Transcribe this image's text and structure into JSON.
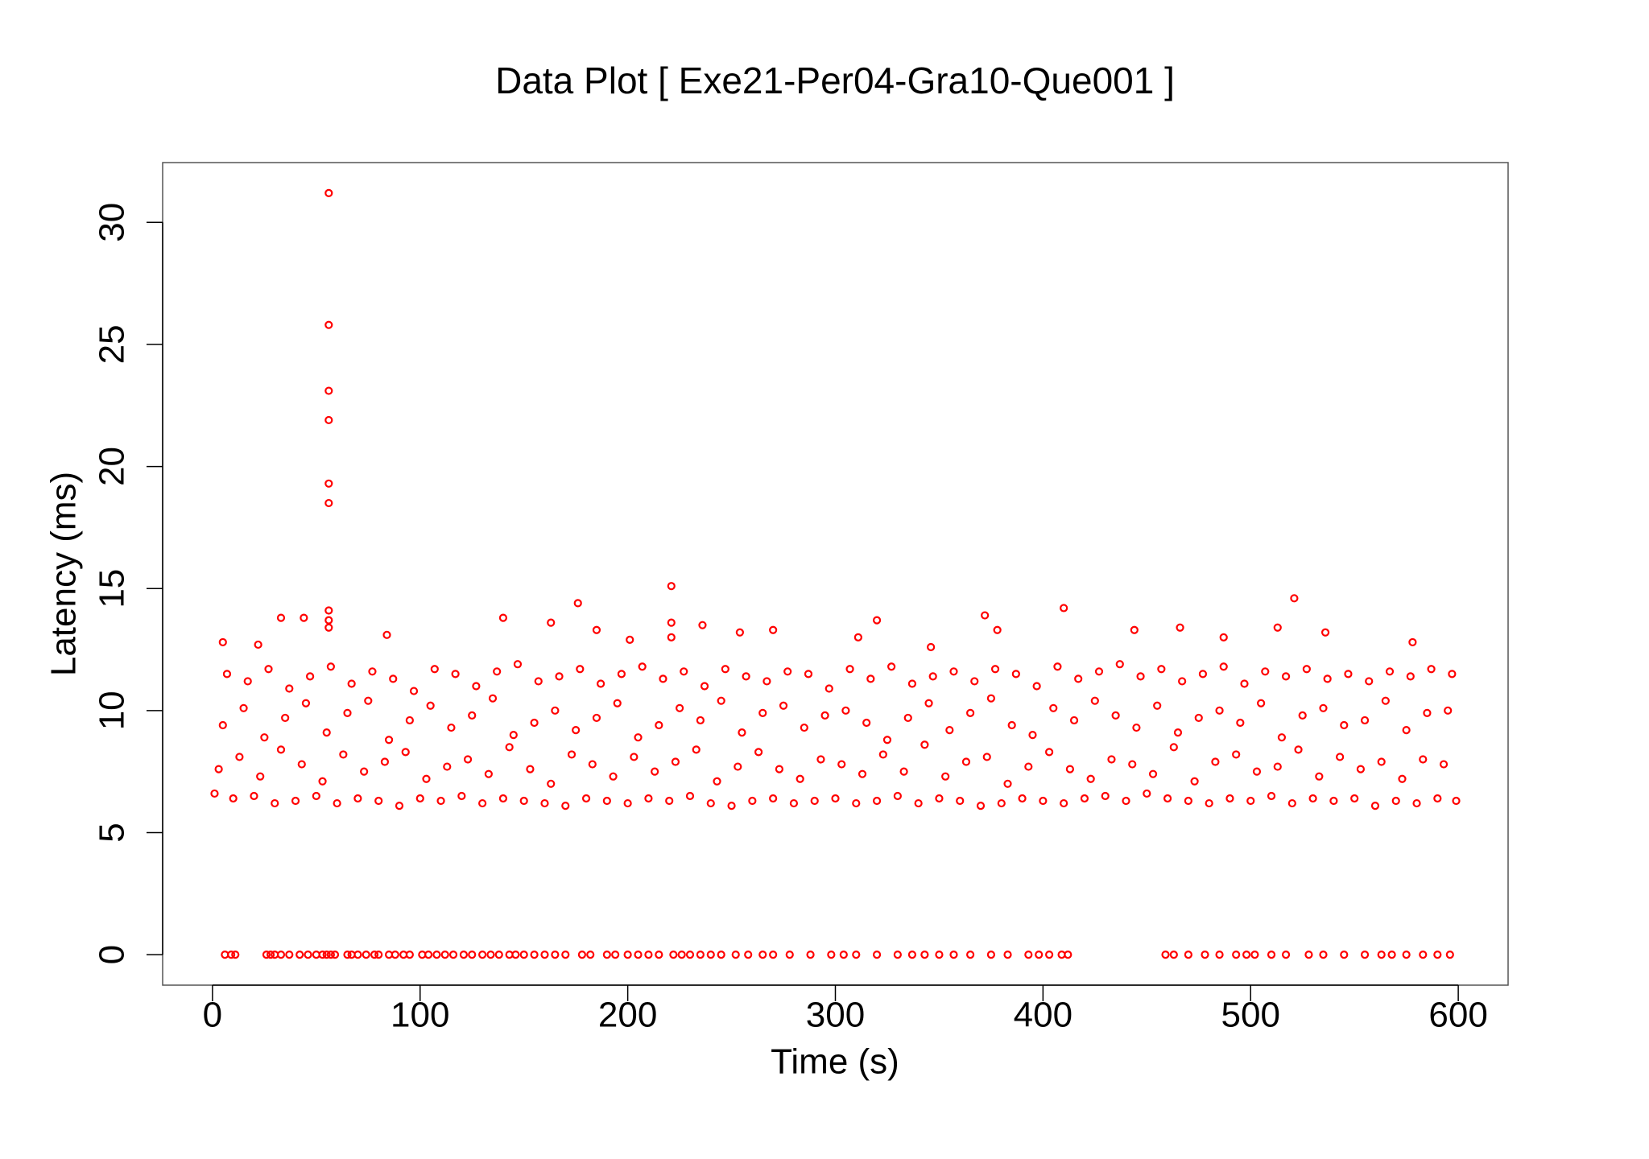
{
  "chart_data": {
    "type": "scatter",
    "title": "Data Plot [ Exe21-Per04-Gra10-Que001 ]",
    "xlabel": "Time (s)",
    "ylabel": "Latency (ms)",
    "color": "#ff0000",
    "xlim": [
      -24,
      624
    ],
    "ylim": [
      -1.25,
      32.45
    ],
    "xticks": [
      0,
      100,
      200,
      300,
      400,
      500,
      600
    ],
    "yticks": [
      0,
      5,
      10,
      15,
      20,
      25,
      30
    ],
    "x": [
      1,
      10,
      20,
      30,
      40,
      50,
      60,
      70,
      80,
      90,
      100,
      110,
      120,
      130,
      140,
      150,
      160,
      170,
      180,
      190,
      200,
      210,
      220,
      230,
      240,
      250,
      260,
      270,
      280,
      290,
      300,
      310,
      320,
      330,
      340,
      350,
      360,
      370,
      380,
      390,
      400,
      410,
      420,
      430,
      440,
      450,
      460,
      470,
      480,
      490,
      500,
      510,
      520,
      530,
      540,
      550,
      560,
      570,
      580,
      590,
      599,
      3,
      13,
      23,
      33,
      43,
      53,
      63,
      73,
      83,
      93,
      103,
      113,
      123,
      133,
      143,
      153,
      163,
      173,
      183,
      193,
      203,
      213,
      223,
      233,
      243,
      253,
      263,
      273,
      283,
      293,
      303,
      313,
      323,
      333,
      343,
      353,
      363,
      373,
      383,
      393,
      403,
      413,
      423,
      433,
      443,
      453,
      463,
      473,
      483,
      493,
      503,
      513,
      523,
      533,
      543,
      553,
      563,
      573,
      583,
      593,
      5,
      15,
      25,
      35,
      45,
      55,
      65,
      75,
      85,
      95,
      105,
      115,
      125,
      135,
      145,
      155,
      165,
      175,
      185,
      195,
      205,
      215,
      225,
      235,
      245,
      255,
      265,
      275,
      285,
      295,
      305,
      315,
      325,
      335,
      345,
      355,
      365,
      375,
      385,
      395,
      405,
      415,
      425,
      435,
      445,
      455,
      465,
      475,
      485,
      495,
      505,
      515,
      525,
      535,
      545,
      555,
      565,
      575,
      585,
      595,
      7,
      17,
      27,
      37,
      47,
      57,
      67,
      77,
      87,
      97,
      107,
      117,
      127,
      137,
      147,
      157,
      167,
      177,
      187,
      197,
      207,
      217,
      227,
      237,
      247,
      257,
      267,
      277,
      287,
      297,
      307,
      317,
      327,
      337,
      347,
      357,
      367,
      377,
      387,
      397,
      407,
      417,
      427,
      437,
      447,
      457,
      467,
      477,
      487,
      497,
      507,
      517,
      527,
      537,
      547,
      557,
      567,
      577,
      587,
      597,
      56,
      56,
      56,
      56,
      56,
      56,
      56,
      56,
      56,
      33,
      44,
      176,
      221,
      221,
      221,
      372,
      410,
      521,
      140,
      163,
      236,
      270,
      320,
      254,
      5,
      22,
      84,
      185,
      201,
      311,
      346,
      378,
      444,
      466,
      487,
      513,
      536,
      578,
      6,
      9,
      11,
      26,
      28,
      30,
      33,
      37,
      42,
      46,
      50,
      53,
      55,
      57,
      59,
      65,
      67,
      70,
      74,
      78,
      80,
      85,
      88,
      92,
      95,
      101,
      104,
      108,
      112,
      116,
      121,
      125,
      130,
      134,
      138,
      143,
      146,
      150,
      155,
      160,
      165,
      170,
      178,
      182,
      190,
      194,
      200,
      205,
      210,
      215,
      222,
      226,
      230,
      235,
      240,
      245,
      252,
      258,
      265,
      270,
      278,
      288,
      298,
      304,
      310,
      320,
      330,
      337,
      343,
      350,
      357,
      365,
      375,
      383,
      393,
      398,
      403,
      409,
      412,
      459,
      463,
      470,
      478,
      485,
      493,
      498,
      502,
      510,
      517,
      528,
      535,
      545,
      555,
      563,
      568,
      575,
      583,
      590,
      596
    ],
    "values": [
      6.6,
      6.4,
      6.5,
      6.2,
      6.3,
      6.5,
      6.2,
      6.4,
      6.3,
      6.1,
      6.4,
      6.3,
      6.5,
      6.2,
      6.4,
      6.3,
      6.2,
      6.1,
      6.4,
      6.3,
      6.2,
      6.4,
      6.3,
      6.5,
      6.2,
      6.1,
      6.3,
      6.4,
      6.2,
      6.3,
      6.4,
      6.2,
      6.3,
      6.5,
      6.2,
      6.4,
      6.3,
      6.1,
      6.2,
      6.4,
      6.3,
      6.2,
      6.4,
      6.5,
      6.3,
      6.6,
      6.4,
      6.3,
      6.2,
      6.4,
      6.3,
      6.5,
      6.2,
      6.4,
      6.3,
      6.4,
      6.1,
      6.3,
      6.2,
      6.4,
      6.3,
      7.6,
      8.1,
      7.3,
      8.4,
      7.8,
      7.1,
      8.2,
      7.5,
      7.9,
      8.3,
      7.2,
      7.7,
      8.0,
      7.4,
      8.5,
      7.6,
      7.0,
      8.2,
      7.8,
      7.3,
      8.1,
      7.5,
      7.9,
      8.4,
      7.1,
      7.7,
      8.3,
      7.6,
      7.2,
      8.0,
      7.8,
      7.4,
      8.2,
      7.5,
      8.6,
      7.3,
      7.9,
      8.1,
      7.0,
      7.7,
      8.3,
      7.6,
      7.2,
      8.0,
      7.8,
      7.4,
      8.5,
      7.1,
      7.9,
      8.2,
      7.5,
      7.7,
      8.4,
      7.3,
      8.1,
      7.6,
      7.9,
      7.2,
      8.0,
      7.8,
      9.4,
      10.1,
      8.9,
      9.7,
      10.3,
      9.1,
      9.9,
      10.4,
      8.8,
      9.6,
      10.2,
      9.3,
      9.8,
      10.5,
      9.0,
      9.5,
      10.0,
      9.2,
      9.7,
      10.3,
      8.9,
      9.4,
      10.1,
      9.6,
      10.4,
      9.1,
      9.9,
      10.2,
      9.3,
      9.8,
      10.0,
      9.5,
      8.8,
      9.7,
      10.3,
      9.2,
      9.9,
      10.5,
      9.4,
      9.0,
      10.1,
      9.6,
      10.4,
      9.8,
      9.3,
      10.2,
      9.1,
      9.7,
      10.0,
      9.5,
      10.3,
      8.9,
      9.8,
      10.1,
      9.4,
      9.6,
      10.4,
      9.2,
      9.9,
      10.0,
      11.5,
      11.2,
      11.7,
      10.9,
      11.4,
      11.8,
      11.1,
      11.6,
      11.3,
      10.8,
      11.7,
      11.5,
      11.0,
      11.6,
      11.9,
      11.2,
      11.4,
      11.7,
      11.1,
      11.5,
      11.8,
      11.3,
      11.6,
      11.0,
      11.7,
      11.4,
      11.2,
      11.6,
      11.5,
      10.9,
      11.7,
      11.3,
      11.8,
      11.1,
      11.4,
      11.6,
      11.2,
      11.7,
      11.5,
      11.0,
      11.8,
      11.3,
      11.6,
      11.9,
      11.4,
      11.7,
      11.2,
      11.5,
      11.8,
      11.1,
      11.6,
      11.4,
      11.7,
      11.3,
      11.5,
      11.2,
      11.6,
      11.4,
      11.7,
      11.5,
      31.2,
      25.8,
      23.1,
      21.9,
      19.3,
      18.5,
      14.1,
      13.7,
      13.4,
      13.8,
      13.8,
      14.4,
      15.1,
      13.6,
      13.0,
      13.9,
      14.2,
      14.6,
      13.8,
      13.6,
      13.5,
      13.3,
      13.7,
      13.2,
      12.8,
      12.7,
      13.1,
      13.3,
      12.9,
      13.0,
      12.6,
      13.3,
      13.3,
      13.4,
      13.0,
      13.4,
      13.2,
      12.8,
      0,
      0,
      0,
      0,
      0,
      0,
      0,
      0,
      0,
      0,
      0,
      0,
      0,
      0,
      0,
      0,
      0,
      0,
      0,
      0,
      0,
      0,
      0,
      0,
      0,
      0,
      0,
      0,
      0,
      0,
      0,
      0,
      0,
      0,
      0,
      0,
      0,
      0,
      0,
      0,
      0,
      0,
      0,
      0,
      0,
      0,
      0,
      0,
      0,
      0,
      0,
      0,
      0,
      0,
      0,
      0,
      0,
      0,
      0,
      0,
      0,
      0,
      0,
      0,
      0,
      0,
      0,
      0,
      0,
      0,
      0,
      0,
      0,
      0,
      0,
      0,
      0,
      0,
      0,
      0,
      0,
      0,
      0,
      0,
      0,
      0,
      0,
      0,
      0,
      0,
      0,
      0,
      0,
      0,
      0,
      0,
      0,
      0,
      0
    ]
  }
}
